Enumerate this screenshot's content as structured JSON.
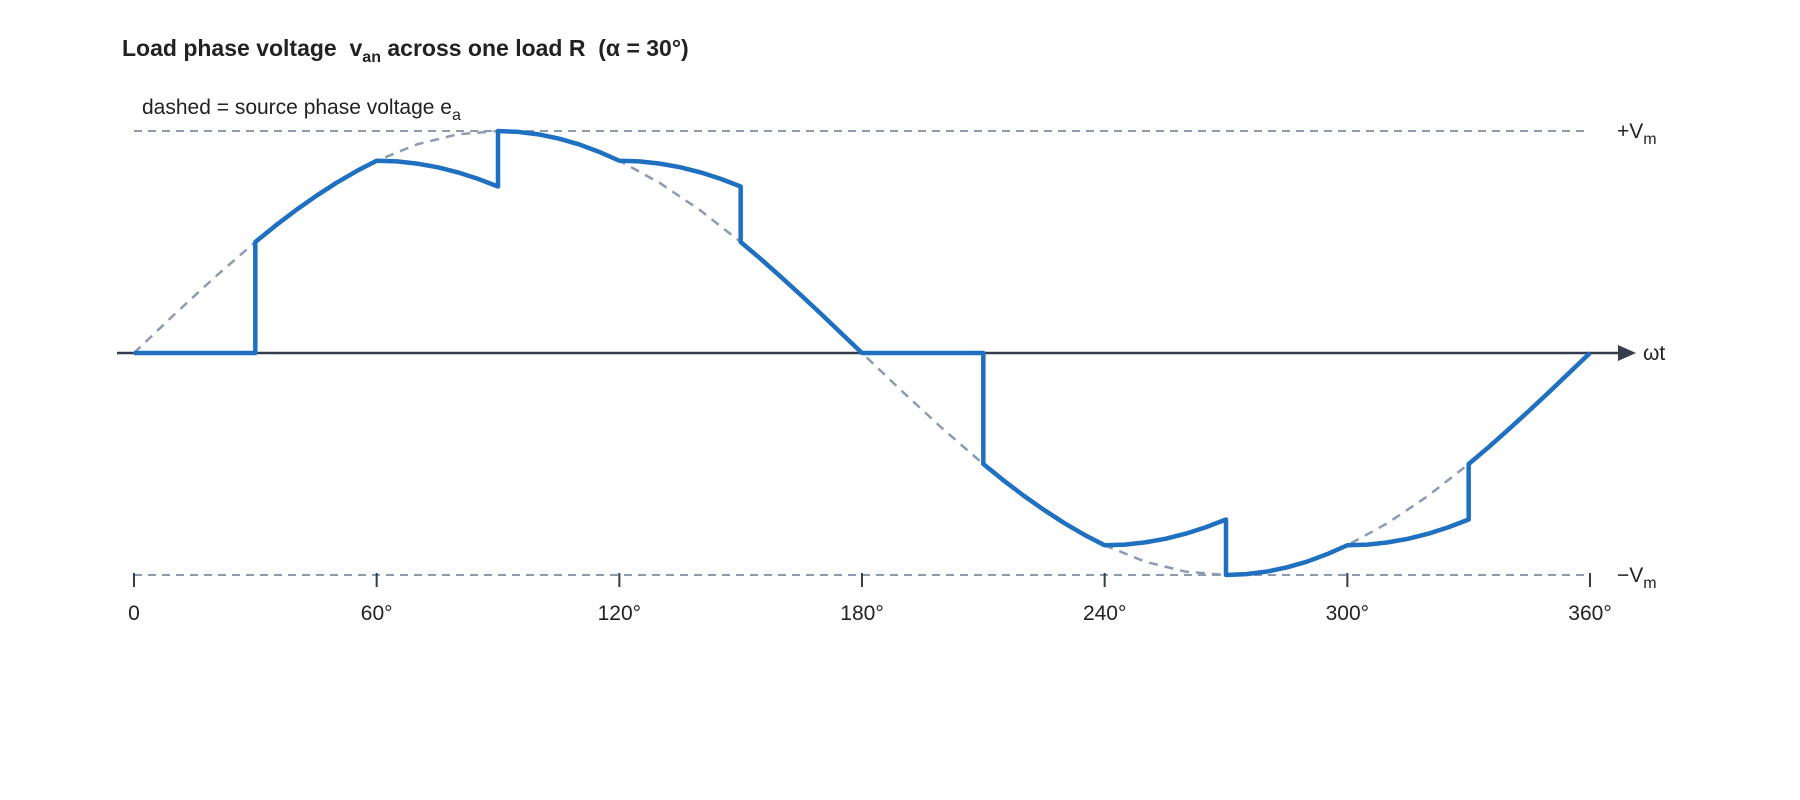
{
  "chart_data": {
    "type": "line",
    "title": "Load phase voltage  v",
    "title_sub": "an",
    "title_end": " across one load R  (α = 30°)",
    "note": "dashed = source phase voltage e",
    "note_sub": "a",
    "xlabel": "ωt",
    "xlim": [
      0,
      360
    ],
    "xticks": [
      0,
      {
        "value": 60,
        "label": "60°"
      },
      {
        "value": 120,
        "label": "120°"
      },
      {
        "value": 180,
        "label": "180°"
      },
      {
        "value": 240,
        "label": "240°"
      },
      {
        "value": 300,
        "label": "300°"
      },
      {
        "value": 360,
        "label": "360°"
      }
    ],
    "ylim": [
      -1,
      1
    ],
    "yticks": [
      {
        "value": 1,
        "label": "+V",
        "label_sub": "m"
      },
      {
        "value": -1,
        "label": "−V",
        "label_sub": "m"
      }
    ],
    "grid": true,
    "axis_color": "#333d4d",
    "series": [
      {
        "color": "#8d9bb0",
        "style": "dashed",
        "x": [
          0,
          10,
          20,
          30,
          40,
          50,
          60,
          70,
          80,
          90,
          100,
          110,
          120,
          130,
          140,
          150,
          160,
          170,
          180,
          190,
          200,
          210,
          220,
          230,
          240,
          250,
          260,
          270,
          280,
          290,
          300,
          310,
          320,
          330,
          340,
          350,
          360
        ],
        "values": [
          0,
          0.174,
          0.342,
          0.5,
          0.643,
          0.766,
          0.866,
          0.94,
          0.985,
          1,
          0.985,
          0.94,
          0.866,
          0.766,
          0.643,
          0.5,
          0.342,
          0.174,
          0,
          -0.174,
          -0.342,
          -0.5,
          -0.643,
          -0.766,
          -0.866,
          -0.94,
          -0.985,
          -1,
          -0.985,
          -0.94,
          -0.866,
          -0.766,
          -0.643,
          -0.5,
          -0.342,
          -0.174,
          0
        ]
      },
      {
        "color": "#1f70c1",
        "style": "solid",
        "x": [
          0,
          30,
          30,
          35,
          40,
          45,
          50,
          55,
          60,
          65,
          70,
          75,
          80,
          85,
          90,
          90,
          95,
          100,
          105,
          110,
          115,
          120,
          125,
          130,
          135,
          140,
          145,
          150,
          150,
          155,
          160,
          165,
          170,
          175,
          180,
          210,
          210,
          215,
          220,
          225,
          230,
          235,
          240,
          245,
          250,
          255,
          260,
          265,
          270,
          270,
          275,
          280,
          285,
          290,
          295,
          300,
          305,
          310,
          315,
          320,
          325,
          330,
          330,
          335,
          340,
          345,
          350,
          355,
          360
        ],
        "values": [
          0,
          0,
          0.5,
          0.574,
          0.643,
          0.707,
          0.766,
          0.819,
          0.866,
          0.863,
          0.853,
          0.837,
          0.814,
          0.785,
          0.75,
          1,
          0.996,
          0.985,
          0.966,
          0.94,
          0.906,
          0.866,
          0.863,
          0.853,
          0.837,
          0.814,
          0.785,
          0.75,
          0.5,
          0.423,
          0.342,
          0.259,
          0.174,
          0.087,
          0,
          0,
          -0.5,
          -0.574,
          -0.643,
          -0.707,
          -0.766,
          -0.819,
          -0.866,
          -0.863,
          -0.853,
          -0.837,
          -0.814,
          -0.785,
          -0.75,
          -1,
          -0.996,
          -0.985,
          -0.966,
          -0.94,
          -0.906,
          -0.866,
          -0.863,
          -0.853,
          -0.837,
          -0.814,
          -0.785,
          -0.75,
          -0.5,
          -0.423,
          -0.342,
          -0.259,
          -0.174,
          -0.087,
          0
        ]
      }
    ]
  }
}
